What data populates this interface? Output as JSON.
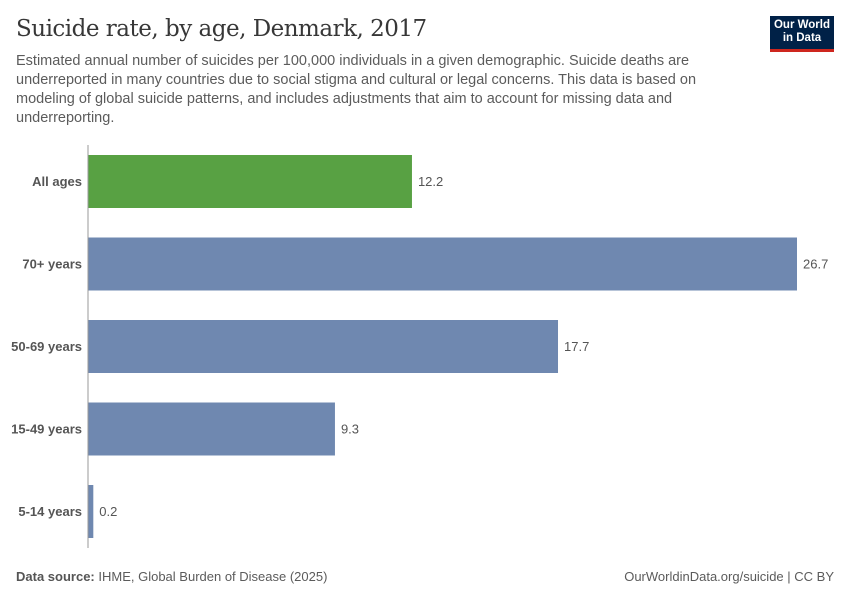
{
  "header": {
    "title": "Suicide rate, by age, Denmark, 2017",
    "subtitle": "Estimated annual number of suicides per 100,000 individuals in a given demographic. Suicide deaths are underreported in many countries due to social stigma and cultural or legal concerns. This data is based on modeling of global suicide patterns, and includes adjustments that aim to account for missing data and underreporting.",
    "logo": "Our World in Data"
  },
  "footer": {
    "source_label": "Data source:",
    "source": "IHME, Global Burden of Disease (2025)",
    "link": "OurWorldinData.org/suicide | CC BY"
  },
  "chart_data": {
    "type": "bar",
    "orientation": "horizontal",
    "title": "Suicide rate, by age, Denmark, 2017",
    "categories": [
      "All ages",
      "70+ years",
      "50-69 years",
      "15-49 years",
      "5-14 years"
    ],
    "values": [
      12.2,
      26.7,
      17.7,
      9.3,
      0.2
    ],
    "value_labels": [
      "12.2",
      "26.7",
      "17.7",
      "9.3",
      "0.2"
    ],
    "colors": [
      "#58a143",
      "#6f88b0",
      "#6f88b0",
      "#6f88b0",
      "#6f88b0"
    ],
    "xlim": [
      0,
      26.7
    ],
    "grid": false,
    "legend": "none"
  }
}
